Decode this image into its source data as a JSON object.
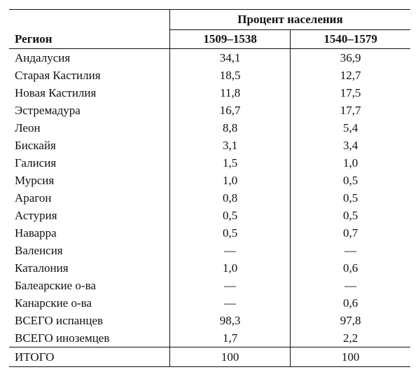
{
  "table": {
    "group_header": "Процент населения",
    "region_header": "Регион",
    "period_headers": [
      "1509–1538",
      "1540–1579"
    ],
    "rows": [
      {
        "region": "Андалусия",
        "p1": "34,1",
        "p2": "36,9"
      },
      {
        "region": "Старая Кастилия",
        "p1": "18,5",
        "p2": "12,7"
      },
      {
        "region": "Новая Кастилия",
        "p1": "11,8",
        "p2": "17,5"
      },
      {
        "region": "Эстремадура",
        "p1": "16,7",
        "p2": "17,7"
      },
      {
        "region": "Леон",
        "p1": "8,8",
        "p2": "5,4"
      },
      {
        "region": "Бискайя",
        "p1": "3,1",
        "p2": "3,4"
      },
      {
        "region": "Галисия",
        "p1": "1,5",
        "p2": "1,0"
      },
      {
        "region": "Мурсия",
        "p1": "1,0",
        "p2": "0,5"
      },
      {
        "region": "Арагон",
        "p1": "0,8",
        "p2": "0,5"
      },
      {
        "region": "Астурия",
        "p1": "0,5",
        "p2": "0,5"
      },
      {
        "region": "Наварра",
        "p1": "0,5",
        "p2": "0,7"
      },
      {
        "region": "Валенсия",
        "p1": "—",
        "p2": "—"
      },
      {
        "region": "Каталония",
        "p1": "1,0",
        "p2": "0,6"
      },
      {
        "region": "Балеарские о-ва",
        "p1": "—",
        "p2": "—"
      },
      {
        "region": "Канарские о-ва",
        "p1": "—",
        "p2": "0,6"
      },
      {
        "region": "ВСЕГО испанцев",
        "p1": "98,3",
        "p2": "97,8"
      },
      {
        "region": "ВСЕГО иноземцев",
        "p1": "1,7",
        "p2": "2,2"
      }
    ],
    "total": {
      "region": "ИТОГО",
      "p1": "100",
      "p2": "100"
    }
  }
}
